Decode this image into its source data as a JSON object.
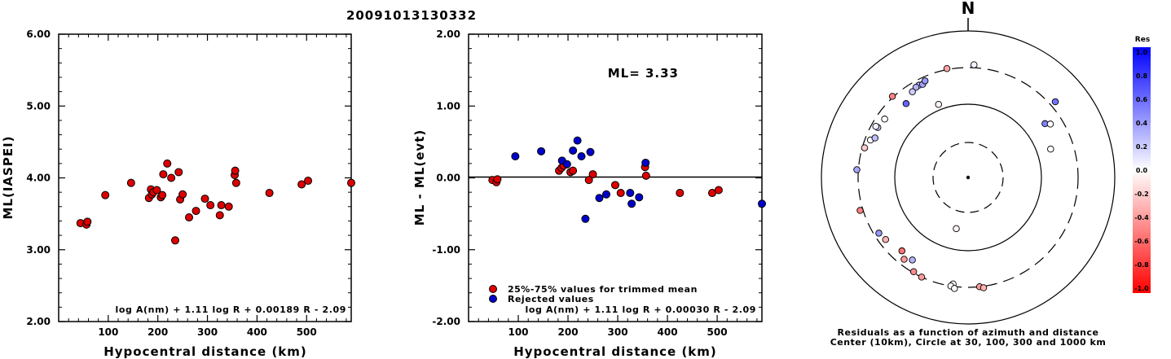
{
  "title": "20091013130332",
  "chart_data": [
    {
      "type": "scatter",
      "name": "ml-vs-distance",
      "xlabel": "Hypocentral distance (km)",
      "ylabel": "ML(IASPEI)",
      "xlim": [
        0,
        590
      ],
      "ylim": [
        2.0,
        6.0
      ],
      "xticks": [
        "100",
        "200",
        "300",
        "400",
        "500"
      ],
      "yticks": [
        "2.00",
        "3.00",
        "4.00",
        "5.00",
        "6.00"
      ],
      "formula": "log A(nm) + 1.11 log R + 0.00189 R - 2.09",
      "point_color": "#dd0000",
      "points": [
        [
          44,
          3.37
        ],
        [
          56,
          3.35
        ],
        [
          58,
          3.39
        ],
        [
          94,
          3.76
        ],
        [
          146,
          3.93
        ],
        [
          182,
          3.72
        ],
        [
          186,
          3.84
        ],
        [
          188,
          3.77
        ],
        [
          191,
          3.8
        ],
        [
          198,
          3.83
        ],
        [
          206,
          3.73
        ],
        [
          209,
          3.76
        ],
        [
          211,
          4.05
        ],
        [
          219,
          4.2
        ],
        [
          227,
          4.0
        ],
        [
          235,
          3.13
        ],
        [
          242,
          4.08
        ],
        [
          245,
          3.7
        ],
        [
          250,
          3.77
        ],
        [
          263,
          3.45
        ],
        [
          277,
          3.54
        ],
        [
          295,
          3.71
        ],
        [
          306,
          3.62
        ],
        [
          325,
          3.48
        ],
        [
          328,
          3.62
        ],
        [
          343,
          3.6
        ],
        [
          355,
          4.04
        ],
        [
          356,
          4.1
        ],
        [
          358,
          3.93
        ],
        [
          425,
          3.79
        ],
        [
          490,
          3.91
        ],
        [
          503,
          3.96
        ],
        [
          590,
          3.93
        ]
      ]
    },
    {
      "type": "scatter",
      "name": "residuals-vs-distance",
      "xlabel": "Hypocentral distance (km)",
      "ylabel": "ML - ML(evt)",
      "xlim": [
        0,
        590
      ],
      "ylim": [
        -2.0,
        2.0
      ],
      "xticks": [
        "100",
        "200",
        "300",
        "400",
        "500"
      ],
      "yticks": [
        "-2.00",
        "-1.00",
        "0.00",
        "1.00",
        "2.00"
      ],
      "annotation": "ML= 3.33",
      "formula": "log A(nm) + 1.11 log R + 0.00030 R - 2.09",
      "legend": {
        "position": "bottom-left",
        "items": [
          {
            "label": "25%-75% values for trimmed mean",
            "color": "#dd0000"
          },
          {
            "label": "Rejected values",
            "color": "#0000cc"
          }
        ]
      },
      "series": [
        {
          "name": "25%-75% values for trimmed mean",
          "color": "#dd0000",
          "points": [
            [
              48,
              -0.03
            ],
            [
              56,
              -0.06
            ],
            [
              58,
              -0.02
            ],
            [
              182,
              0.1
            ],
            [
              187,
              0.14
            ],
            [
              191,
              0.17
            ],
            [
              205,
              0.08
            ],
            [
              210,
              0.1
            ],
            [
              242,
              -0.03
            ],
            [
              250,
              0.05
            ],
            [
              295,
              -0.1
            ],
            [
              306,
              -0.21
            ],
            [
              355,
              0.15
            ],
            [
              357,
              0.03
            ],
            [
              425,
              -0.21
            ],
            [
              490,
              -0.21
            ],
            [
              503,
              -0.17
            ]
          ]
        },
        {
          "name": "Rejected values",
          "color": "#0000cc",
          "points": [
            [
              94,
              0.3
            ],
            [
              146,
              0.37
            ],
            [
              188,
              0.24
            ],
            [
              198,
              0.19
            ],
            [
              210,
              0.38
            ],
            [
              219,
              0.52
            ],
            [
              227,
              0.3
            ],
            [
              235,
              -0.57
            ],
            [
              245,
              0.36
            ],
            [
              263,
              -0.28
            ],
            [
              277,
              -0.23
            ],
            [
              325,
              -0.21
            ],
            [
              328,
              -0.36
            ],
            [
              343,
              -0.27
            ],
            [
              356,
              0.21
            ],
            [
              590,
              -0.36
            ]
          ]
        }
      ]
    },
    {
      "type": "scatter",
      "name": "azimuth-distance-residuals",
      "north_label": "N",
      "caption_line1": "Residuals as a function of azimuth and distance",
      "caption_line2": "Center (10km), Circle at 30, 100, 300 and 1000 km",
      "rings_km": [
        30,
        100,
        300,
        1000
      ],
      "colorbar": {
        "title": "Res",
        "ticks": [
          "1.0",
          "0.8",
          "0.6",
          "0.4",
          "0.2",
          "0.0",
          "-0.2",
          "-0.4",
          "-0.6",
          "-0.8",
          "-1.0"
        ]
      },
      "points": [
        {
          "azimuth": 3,
          "distance_km": 330,
          "res": 0.05
        },
        {
          "azimuth": 349,
          "distance_km": 310,
          "res": -0.35
        },
        {
          "azimuth": 49,
          "distance_km": 360,
          "res": 0.55
        },
        {
          "azimuth": 55,
          "distance_km": 185,
          "res": 0.5
        },
        {
          "azimuth": 71,
          "distance_km": 152,
          "res": 0.0
        },
        {
          "azimuth": 332,
          "distance_km": 255,
          "res": 0.3
        },
        {
          "azimuth": 334,
          "distance_km": 248,
          "res": 0.35
        },
        {
          "azimuth": 330,
          "distance_km": 252,
          "res": 0.3
        },
        {
          "azimuth": 327,
          "distance_km": 238,
          "res": 0.2
        },
        {
          "azimuth": 336,
          "distance_km": 265,
          "res": 0.4
        },
        {
          "azimuth": 317,
          "distance_km": 310,
          "res": -0.5
        },
        {
          "azimuth": 320,
          "distance_km": 200,
          "res": 0.6
        },
        {
          "azimuth": 305,
          "distance_km": 235,
          "res": 0.0
        },
        {
          "azimuth": 299,
          "distance_km": 245,
          "res": 0.2
        },
        {
          "azimuth": 299,
          "distance_km": 262,
          "res": 0.05
        },
        {
          "azimuth": 291,
          "distance_km": 255,
          "res": 0.02
        },
        {
          "azimuth": 293,
          "distance_km": 230,
          "res": 0.25
        },
        {
          "azimuth": 286,
          "distance_km": 280,
          "res": -0.2
        },
        {
          "azimuth": 338,
          "distance_km": 118,
          "res": -0.05
        },
        {
          "azimuth": 274,
          "distance_km": 315,
          "res": 0.35
        },
        {
          "azimuth": 253,
          "distance_km": 330,
          "res": -0.5
        },
        {
          "azimuth": 238,
          "distance_km": 260,
          "res": 0.4
        },
        {
          "azimuth": 233,
          "distance_km": 245,
          "res": -0.3
        },
        {
          "azimuth": 222,
          "distance_km": 215,
          "res": -0.55
        },
        {
          "azimuth": 214,
          "distance_km": 220,
          "res": 0.3
        },
        {
          "azimuth": 218,
          "distance_km": 250,
          "res": -0.4
        },
        {
          "azimuth": 210,
          "distance_km": 290,
          "res": -0.45
        },
        {
          "azimuth": 205,
          "distance_km": 300,
          "res": -0.4
        },
        {
          "azimuth": 193,
          "distance_km": 52,
          "res": -0.05
        },
        {
          "azimuth": 188,
          "distance_km": 280,
          "res": 0.0
        },
        {
          "azimuth": 189,
          "distance_km": 300,
          "res": 0.0
        },
        {
          "azimuth": 187,
          "distance_km": 320,
          "res": 0.02
        },
        {
          "azimuth": 174,
          "distance_km": 300,
          "res": -0.4
        },
        {
          "azimuth": 172,
          "distance_km": 315,
          "res": -0.3
        },
        {
          "azimuth": 57,
          "distance_km": 210,
          "res": 0.0
        }
      ]
    }
  ]
}
